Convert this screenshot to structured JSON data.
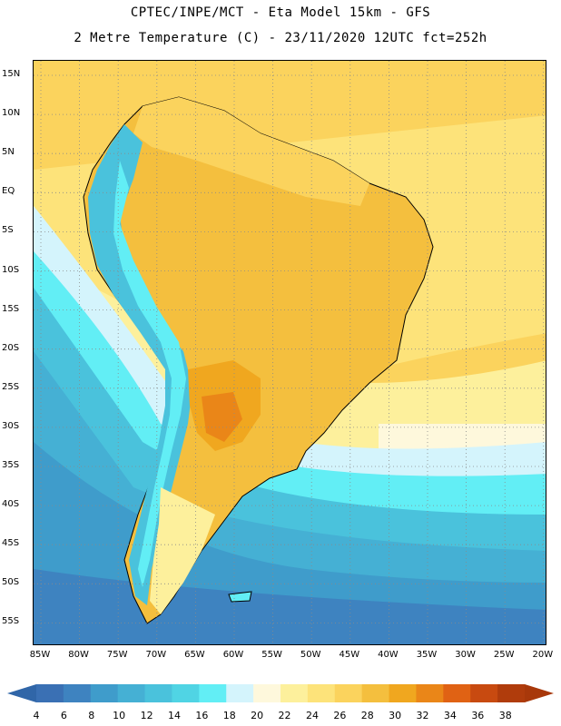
{
  "header": {
    "line1": "CPTEC/INPE/MCT -  Eta Model 15km - GFS",
    "line2": "2 Metre Temperature (C) - 23/11/2020 12UTC fct=252h"
  },
  "map": {
    "lat_labels": [
      "15N",
      "10N",
      "5N",
      "EQ",
      "5S",
      "10S",
      "15S",
      "20S",
      "25S",
      "30S",
      "35S",
      "40S",
      "45S",
      "50S",
      "55S"
    ],
    "lon_labels": [
      "85W",
      "80W",
      "75W",
      "70W",
      "65W",
      "60W",
      "55W",
      "50W",
      "45W",
      "40W",
      "35W",
      "30W",
      "25W",
      "20W"
    ],
    "grid_lines": "dotted"
  },
  "colorbar": {
    "levels": [
      "4",
      "6",
      "8",
      "10",
      "12",
      "14",
      "16",
      "18",
      "20",
      "22",
      "24",
      "26",
      "28",
      "30",
      "32",
      "34",
      "36",
      "38"
    ],
    "colors": [
      "#3a70b4",
      "#3e83c0",
      "#3f9ccb",
      "#45b0d4",
      "#4ac2dc",
      "#50d4e4",
      "#62eef5",
      "#d4f4fc",
      "#fef8dc",
      "#fdf09c",
      "#fde37a",
      "#fbd35d",
      "#f4bf3e",
      "#f0a71f",
      "#ea8618",
      "#e06214",
      "#c84a10",
      "#b03c0c"
    ],
    "under_color": "#3066a8",
    "over_color": "#a8380a"
  }
}
